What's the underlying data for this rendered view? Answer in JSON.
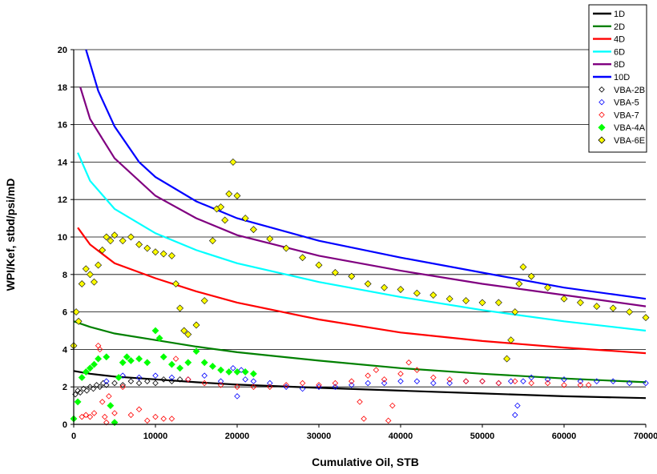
{
  "chart_data": {
    "type": "scatter",
    "title": "",
    "xlabel": "Cumulative Oil, STB",
    "ylabel": "WPI/Kef, stbd/psi/mD",
    "xlim": [
      0,
      70000
    ],
    "ylim": [
      0,
      20
    ],
    "x_ticks": [
      0,
      10000,
      20000,
      30000,
      40000,
      50000,
      60000,
      70000
    ],
    "y_ticks": [
      0,
      2,
      4,
      6,
      8,
      10,
      12,
      14,
      16,
      18,
      20
    ],
    "grid": "horizontal",
    "legend_position": "top-right",
    "lines": [
      {
        "name": "1D",
        "color": "#000000",
        "points": [
          [
            0,
            2.85
          ],
          [
            2000,
            2.7
          ],
          [
            5000,
            2.55
          ],
          [
            10000,
            2.4
          ],
          [
            15000,
            2.25
          ],
          [
            20000,
            2.12
          ],
          [
            30000,
            1.95
          ],
          [
            40000,
            1.8
          ],
          [
            50000,
            1.65
          ],
          [
            60000,
            1.5
          ],
          [
            70000,
            1.4
          ]
        ]
      },
      {
        "name": "2D",
        "color": "#008000",
        "points": [
          [
            0,
            5.5
          ],
          [
            2000,
            5.2
          ],
          [
            5000,
            4.85
          ],
          [
            10000,
            4.5
          ],
          [
            15000,
            4.15
          ],
          [
            20000,
            3.85
          ],
          [
            30000,
            3.4
          ],
          [
            40000,
            3.0
          ],
          [
            50000,
            2.7
          ],
          [
            60000,
            2.45
          ],
          [
            70000,
            2.25
          ]
        ]
      },
      {
        "name": "4D",
        "color": "#ff0000",
        "points": [
          [
            500,
            10.5
          ],
          [
            2000,
            9.6
          ],
          [
            5000,
            8.6
          ],
          [
            10000,
            7.8
          ],
          [
            15000,
            7.1
          ],
          [
            20000,
            6.5
          ],
          [
            30000,
            5.6
          ],
          [
            40000,
            4.9
          ],
          [
            50000,
            4.45
          ],
          [
            60000,
            4.1
          ],
          [
            70000,
            3.8
          ]
        ]
      },
      {
        "name": "6D",
        "color": "#00ffff",
        "points": [
          [
            500,
            14.5
          ],
          [
            2000,
            13.0
          ],
          [
            5000,
            11.5
          ],
          [
            10000,
            10.2
          ],
          [
            15000,
            9.3
          ],
          [
            20000,
            8.6
          ],
          [
            30000,
            7.6
          ],
          [
            40000,
            6.8
          ],
          [
            50000,
            6.1
          ],
          [
            60000,
            5.5
          ],
          [
            70000,
            5.0
          ]
        ]
      },
      {
        "name": "8D",
        "color": "#800080",
        "points": [
          [
            800,
            18.0
          ],
          [
            2000,
            16.3
          ],
          [
            5000,
            14.2
          ],
          [
            10000,
            12.2
          ],
          [
            15000,
            11.0
          ],
          [
            20000,
            10.1
          ],
          [
            30000,
            9.0
          ],
          [
            40000,
            8.2
          ],
          [
            50000,
            7.5
          ],
          [
            60000,
            6.9
          ],
          [
            70000,
            6.3
          ]
        ]
      },
      {
        "name": "10D",
        "color": "#0000ff",
        "points": [
          [
            1500,
            20.0
          ],
          [
            3000,
            17.8
          ],
          [
            5000,
            15.9
          ],
          [
            8000,
            14.0
          ],
          [
            10000,
            13.2
          ],
          [
            15000,
            11.9
          ],
          [
            20000,
            11.0
          ],
          [
            30000,
            9.8
          ],
          [
            40000,
            8.9
          ],
          [
            50000,
            8.1
          ],
          [
            60000,
            7.3
          ],
          [
            70000,
            6.7
          ]
        ]
      }
    ],
    "scatter_series": [
      {
        "name": "VBA-2B",
        "color": "#000000",
        "marker": "diamond-open",
        "points": [
          [
            200,
            1.6
          ],
          [
            500,
            1.8
          ],
          [
            800,
            1.7
          ],
          [
            1200,
            1.9
          ],
          [
            1600,
            1.8
          ],
          [
            2000,
            2.0
          ],
          [
            2400,
            1.9
          ],
          [
            2800,
            2.1
          ],
          [
            3200,
            2.0
          ],
          [
            3600,
            2.2
          ],
          [
            4000,
            2.1
          ],
          [
            5000,
            2.2
          ],
          [
            6000,
            2.1
          ],
          [
            7000,
            2.3
          ],
          [
            8000,
            2.2
          ],
          [
            9000,
            2.3
          ],
          [
            10000,
            2.2
          ],
          [
            11000,
            2.4
          ],
          [
            12000,
            2.3
          ],
          [
            13000,
            2.4
          ]
        ]
      },
      {
        "name": "VBA-5",
        "color": "#0000ff",
        "marker": "diamond-open",
        "points": [
          [
            4000,
            2.3
          ],
          [
            6000,
            2.6
          ],
          [
            8000,
            2.5
          ],
          [
            10000,
            2.6
          ],
          [
            12000,
            2.5
          ],
          [
            14000,
            2.4
          ],
          [
            16000,
            2.6
          ],
          [
            18000,
            2.3
          ],
          [
            19500,
            3.0
          ],
          [
            20000,
            1.5
          ],
          [
            20500,
            2.9
          ],
          [
            21000,
            2.4
          ],
          [
            22000,
            2.3
          ],
          [
            24000,
            2.2
          ],
          [
            26000,
            2.0
          ],
          [
            28000,
            1.9
          ],
          [
            30000,
            2.0
          ],
          [
            32000,
            2.0
          ],
          [
            34000,
            2.1
          ],
          [
            36000,
            2.2
          ],
          [
            38000,
            2.2
          ],
          [
            40000,
            2.3
          ],
          [
            42000,
            2.3
          ],
          [
            44000,
            2.2
          ],
          [
            46000,
            2.2
          ],
          [
            48000,
            2.3
          ],
          [
            50000,
            2.3
          ],
          [
            52000,
            2.2
          ],
          [
            53500,
            2.3
          ],
          [
            54000,
            0.5
          ],
          [
            54300,
            1.0
          ],
          [
            55000,
            2.3
          ],
          [
            56000,
            2.5
          ],
          [
            58000,
            2.4
          ],
          [
            60000,
            2.4
          ],
          [
            62000,
            2.3
          ],
          [
            64000,
            2.3
          ],
          [
            66000,
            2.3
          ],
          [
            68000,
            2.2
          ],
          [
            70000,
            2.2
          ]
        ]
      },
      {
        "name": "VBA-7",
        "color": "#ff0000",
        "marker": "diamond-open",
        "points": [
          [
            1000,
            0.4
          ],
          [
            1500,
            0.5
          ],
          [
            2000,
            0.4
          ],
          [
            2500,
            0.6
          ],
          [
            3000,
            4.2
          ],
          [
            3200,
            4.0
          ],
          [
            3500,
            1.2
          ],
          [
            3800,
            0.4
          ],
          [
            4000,
            0.1
          ],
          [
            4300,
            1.5
          ],
          [
            5000,
            0.6
          ],
          [
            6000,
            2.0
          ],
          [
            7000,
            0.5
          ],
          [
            8000,
            0.8
          ],
          [
            9000,
            0.2
          ],
          [
            10000,
            0.4
          ],
          [
            11000,
            0.3
          ],
          [
            12000,
            0.3
          ],
          [
            12500,
            3.5
          ],
          [
            14000,
            2.4
          ],
          [
            16000,
            2.2
          ],
          [
            18000,
            2.1
          ],
          [
            20000,
            2.0
          ],
          [
            22000,
            2.0
          ],
          [
            24000,
            2.0
          ],
          [
            26000,
            2.1
          ],
          [
            28000,
            2.2
          ],
          [
            30000,
            2.1
          ],
          [
            32000,
            2.2
          ],
          [
            34000,
            2.3
          ],
          [
            35000,
            1.2
          ],
          [
            35500,
            0.3
          ],
          [
            36000,
            2.6
          ],
          [
            37000,
            2.9
          ],
          [
            38000,
            2.4
          ],
          [
            38500,
            0.2
          ],
          [
            39000,
            1.0
          ],
          [
            40000,
            2.7
          ],
          [
            41000,
            3.3
          ],
          [
            42000,
            2.9
          ],
          [
            44000,
            2.5
          ],
          [
            46000,
            2.4
          ],
          [
            48000,
            2.3
          ],
          [
            50000,
            2.3
          ],
          [
            52000,
            2.2
          ],
          [
            54000,
            2.3
          ],
          [
            56000,
            2.2
          ],
          [
            58000,
            2.2
          ],
          [
            60000,
            2.1
          ],
          [
            62000,
            2.1
          ],
          [
            63000,
            2.1
          ]
        ]
      },
      {
        "name": "VBA-4A",
        "color": "#00ff00",
        "marker": "diamond-filled",
        "points": [
          [
            0,
            0.3
          ],
          [
            500,
            1.2
          ],
          [
            1000,
            2.5
          ],
          [
            1500,
            2.8
          ],
          [
            2000,
            3.0
          ],
          [
            2500,
            3.2
          ],
          [
            3000,
            3.5
          ],
          [
            4000,
            3.6
          ],
          [
            4500,
            1.0
          ],
          [
            5000,
            0.1
          ],
          [
            5500,
            2.5
          ],
          [
            6000,
            3.3
          ],
          [
            6500,
            3.6
          ],
          [
            7000,
            3.4
          ],
          [
            8000,
            3.5
          ],
          [
            9000,
            3.3
          ],
          [
            10000,
            5.0
          ],
          [
            10500,
            4.6
          ],
          [
            11000,
            3.6
          ],
          [
            12000,
            3.2
          ],
          [
            13000,
            3.0
          ],
          [
            14000,
            3.3
          ],
          [
            15000,
            3.9
          ],
          [
            16000,
            3.3
          ],
          [
            17000,
            3.1
          ],
          [
            18000,
            2.9
          ],
          [
            19000,
            2.8
          ],
          [
            20000,
            2.8
          ],
          [
            21000,
            2.8
          ],
          [
            22000,
            2.7
          ]
        ]
      },
      {
        "name": "VBA-6E",
        "color": "#ffff00",
        "marker": "diamond-filled",
        "points": [
          [
            0,
            4.2
          ],
          [
            300,
            6.0
          ],
          [
            600,
            5.5
          ],
          [
            1000,
            7.5
          ],
          [
            1500,
            8.3
          ],
          [
            2000,
            8.0
          ],
          [
            2500,
            7.6
          ],
          [
            3000,
            8.5
          ],
          [
            3500,
            9.3
          ],
          [
            4000,
            10.0
          ],
          [
            4500,
            9.8
          ],
          [
            5000,
            10.1
          ],
          [
            6000,
            9.8
          ],
          [
            7000,
            10.0
          ],
          [
            8000,
            9.6
          ],
          [
            9000,
            9.4
          ],
          [
            10000,
            9.2
          ],
          [
            11000,
            9.1
          ],
          [
            12000,
            9.0
          ],
          [
            12500,
            7.5
          ],
          [
            13000,
            6.2
          ],
          [
            13500,
            5.0
          ],
          [
            14000,
            4.8
          ],
          [
            15000,
            5.3
          ],
          [
            16000,
            6.6
          ],
          [
            17000,
            9.8
          ],
          [
            17500,
            11.5
          ],
          [
            18000,
            11.6
          ],
          [
            18500,
            10.9
          ],
          [
            19000,
            12.3
          ],
          [
            19500,
            14.0
          ],
          [
            20000,
            12.2
          ],
          [
            21000,
            11.0
          ],
          [
            22000,
            10.4
          ],
          [
            24000,
            9.9
          ],
          [
            26000,
            9.4
          ],
          [
            28000,
            8.9
          ],
          [
            30000,
            8.5
          ],
          [
            32000,
            8.1
          ],
          [
            34000,
            7.9
          ],
          [
            36000,
            7.5
          ],
          [
            38000,
            7.3
          ],
          [
            40000,
            7.2
          ],
          [
            42000,
            7.0
          ],
          [
            44000,
            6.9
          ],
          [
            46000,
            6.7
          ],
          [
            48000,
            6.6
          ],
          [
            50000,
            6.5
          ],
          [
            52000,
            6.5
          ],
          [
            53000,
            3.5
          ],
          [
            53500,
            4.5
          ],
          [
            54000,
            6.0
          ],
          [
            54500,
            7.5
          ],
          [
            55000,
            8.4
          ],
          [
            56000,
            7.9
          ],
          [
            58000,
            7.3
          ],
          [
            60000,
            6.7
          ],
          [
            62000,
            6.5
          ],
          [
            64000,
            6.3
          ],
          [
            66000,
            6.2
          ],
          [
            68000,
            6.0
          ],
          [
            70000,
            5.7
          ]
        ]
      }
    ]
  }
}
